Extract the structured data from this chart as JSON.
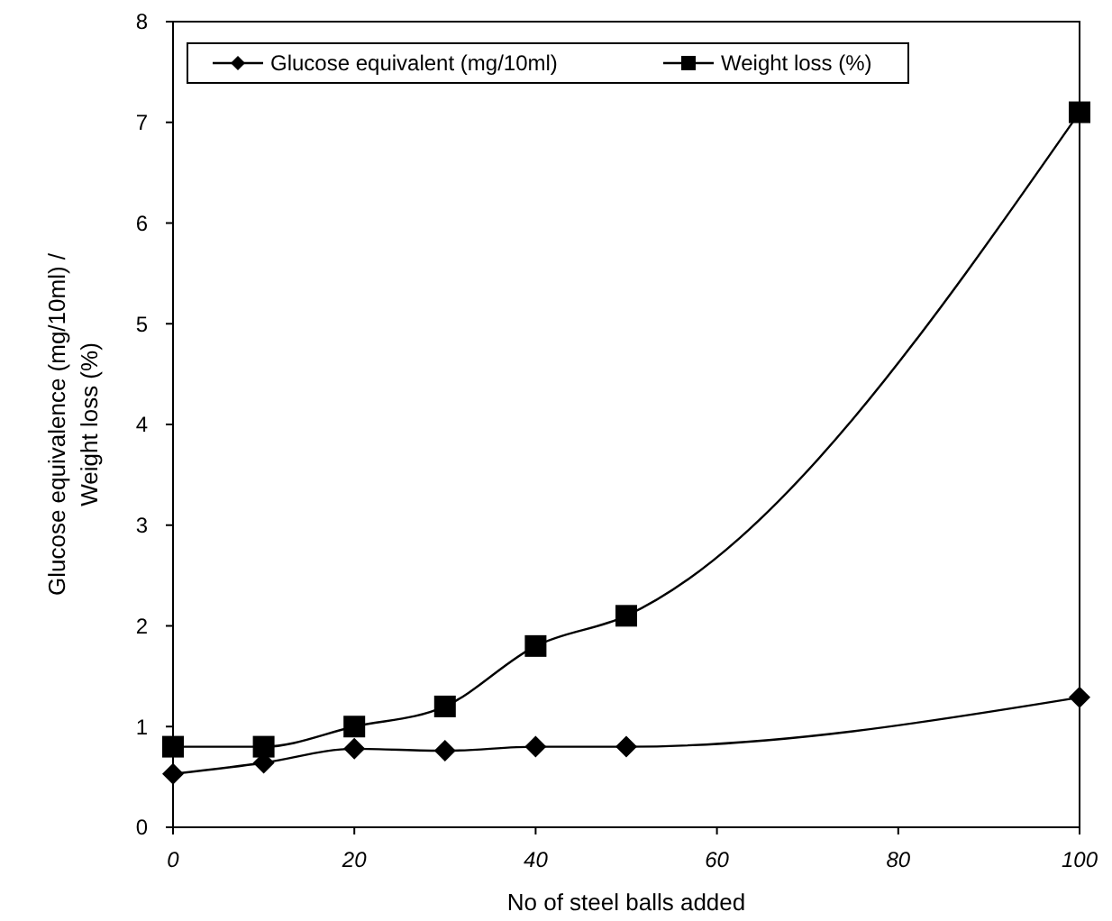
{
  "chart_data": {
    "type": "line",
    "xlabel": "No of steel balls added",
    "ylabel": "Glucose equivalence (mg/10ml) / Weight loss (%)",
    "x": [
      0,
      10,
      20,
      30,
      40,
      50,
      100
    ],
    "series": [
      {
        "name": "Glucose equivalent (mg/10ml)",
        "color": "#000000",
        "marker": "diamond",
        "values": [
          0.53,
          0.64,
          0.78,
          0.76,
          0.8,
          0.8,
          1.29
        ]
      },
      {
        "name": "Weight loss (%)",
        "color": "#000000",
        "marker": "square",
        "values": [
          0.8,
          0.8,
          1.0,
          1.2,
          1.8,
          2.1,
          7.1
        ]
      }
    ],
    "xlim": [
      0,
      100
    ],
    "xticks": [
      0,
      20,
      40,
      60,
      80,
      100
    ],
    "ylim": [
      0,
      8
    ],
    "yticks": [
      0,
      1,
      2,
      3,
      4,
      5,
      6,
      7,
      8
    ],
    "grid": false,
    "legend": "top",
    "line_style": "solid"
  }
}
